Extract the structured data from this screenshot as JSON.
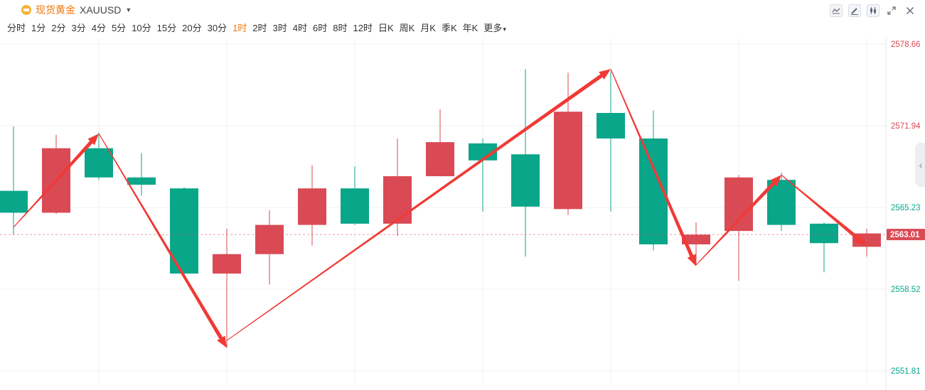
{
  "header": {
    "symbol_name": "现货黄金",
    "symbol_code": "XAUUSD",
    "icons": [
      "gold-icon",
      "chevron-down-icon"
    ]
  },
  "toolbar": {
    "icons": [
      "indicator-icon",
      "draw-pen-icon",
      "candle-style-icon",
      "expand-icon",
      "close-icon"
    ]
  },
  "periods": [
    "分时",
    "1分",
    "2分",
    "3分",
    "4分",
    "5分",
    "10分",
    "15分",
    "20分",
    "30分",
    "1时",
    "2时",
    "3时",
    "4时",
    "6时",
    "8时",
    "12时",
    "日K",
    "周K",
    "月K",
    "季K",
    "年K",
    "更多"
  ],
  "active_period": "1时",
  "colors": {
    "up": "#d94a55",
    "down": "#0aa68a",
    "arrow": "#f03a36",
    "accent": "#f0780f",
    "grid": "#f0f0f0"
  },
  "chart_data": {
    "type": "candlestick",
    "ylim": [
      2551.81,
      2578.66
    ],
    "y_ticks": [
      {
        "value": 2578.66,
        "label": "2578.66",
        "color": "#d94a55"
      },
      {
        "value": 2571.94,
        "label": "2571.94",
        "color": "#d94a55"
      },
      {
        "value": 2565.23,
        "label": "2565.23",
        "color": "#0aa68a"
      },
      {
        "value": 2558.52,
        "label": "2558.52",
        "color": "#0aa68a"
      },
      {
        "value": 2551.81,
        "label": "2551.81",
        "color": "#0aa68a"
      }
    ],
    "last_price": 2563.01,
    "last_price_label": "2563.01",
    "grid": true,
    "candles": [
      {
        "open": 2566.6,
        "high": 2571.9,
        "low": 2563.0,
        "close": 2564.8
      },
      {
        "open": 2564.8,
        "high": 2571.2,
        "low": 2564.7,
        "close": 2570.1
      },
      {
        "open": 2570.1,
        "high": 2571.4,
        "low": 2567.5,
        "close": 2567.7
      },
      {
        "open": 2567.7,
        "high": 2569.7,
        "low": 2566.2,
        "close": 2567.1
      },
      {
        "open": 2566.8,
        "high": 2566.9,
        "low": 2559.6,
        "close": 2559.8
      },
      {
        "open": 2559.8,
        "high": 2563.5,
        "low": 2553.7,
        "close": 2561.4
      },
      {
        "open": 2561.4,
        "high": 2565.0,
        "low": 2558.9,
        "close": 2563.8
      },
      {
        "open": 2563.8,
        "high": 2568.7,
        "low": 2562.1,
        "close": 2566.8
      },
      {
        "open": 2566.8,
        "high": 2568.6,
        "low": 2563.8,
        "close": 2563.9
      },
      {
        "open": 2563.9,
        "high": 2570.9,
        "low": 2562.9,
        "close": 2567.8
      },
      {
        "open": 2567.8,
        "high": 2573.3,
        "low": 2567.8,
        "close": 2570.6
      },
      {
        "open": 2570.5,
        "high": 2570.9,
        "low": 2564.9,
        "close": 2569.1
      },
      {
        "open": 2569.6,
        "high": 2576.6,
        "low": 2561.2,
        "close": 2565.3
      },
      {
        "open": 2565.1,
        "high": 2576.3,
        "low": 2564.6,
        "close": 2573.1
      },
      {
        "open": 2573.0,
        "high": 2576.4,
        "low": 2564.9,
        "close": 2570.9
      },
      {
        "open": 2570.9,
        "high": 2573.2,
        "low": 2561.7,
        "close": 2562.2
      },
      {
        "open": 2562.2,
        "high": 2564.0,
        "low": 2560.5,
        "close": 2563.0
      },
      {
        "open": 2563.3,
        "high": 2567.9,
        "low": 2559.2,
        "close": 2567.7
      },
      {
        "open": 2567.5,
        "high": 2568.1,
        "low": 2563.3,
        "close": 2563.8
      },
      {
        "open": 2563.9,
        "high": 2564.0,
        "low": 2559.9,
        "close": 2562.3
      },
      {
        "open": 2562.0,
        "high": 2563.5,
        "low": 2561.2,
        "close": 2563.1
      }
    ],
    "trend_arrows": [
      {
        "from": [
          0,
          2563.6
        ],
        "to": [
          2,
          2571.3
        ]
      },
      {
        "from": [
          2,
          2571.3
        ],
        "to": [
          5,
          2553.7
        ]
      },
      {
        "from": [
          5,
          2554.3
        ],
        "to": [
          14,
          2576.6
        ]
      },
      {
        "from": [
          14,
          2576.6
        ],
        "to": [
          16,
          2560.4
        ]
      },
      {
        "from": [
          16,
          2560.5
        ],
        "to": [
          18,
          2567.9
        ]
      },
      {
        "from": [
          18,
          2567.9
        ],
        "to": [
          20,
          2562.1
        ]
      }
    ]
  }
}
